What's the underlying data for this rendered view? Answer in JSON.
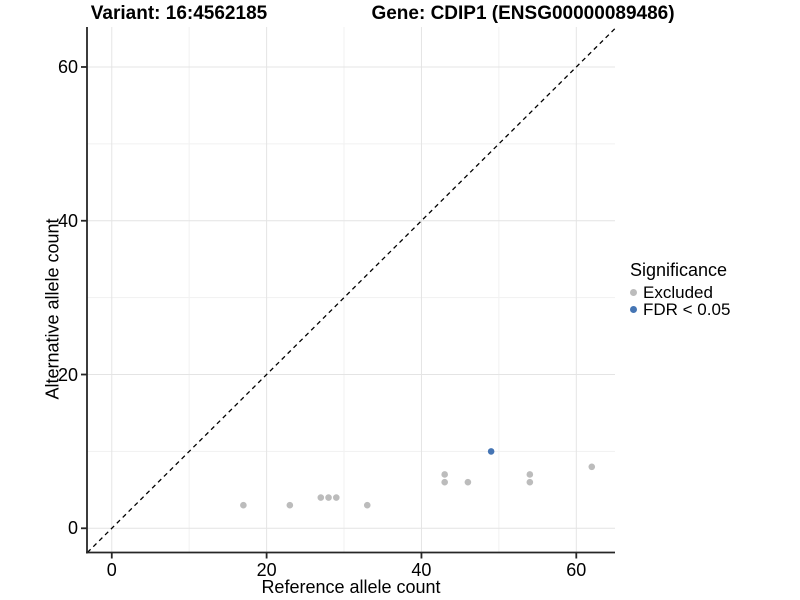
{
  "header": {
    "variant_title": "Variant: 16:4562185",
    "gene_title": "Gene: CDIP1 (ENSG00000089486)"
  },
  "axes": {
    "x_label": "Reference allele count",
    "y_label": "Alternative allele count"
  },
  "legend": {
    "title": "Significance",
    "items": [
      {
        "label": "Excluded",
        "color": "#bcbcbc"
      },
      {
        "label": "FDR < 0.05",
        "color": "#4575b4"
      }
    ]
  },
  "colors": {
    "excluded": "#bcbcbc",
    "significant": "#4575b4",
    "grid_major": "#e4e4e4",
    "grid_minor": "#f1f1f1",
    "axis_line": "#262626",
    "reference_line": "#000000"
  },
  "chart_data": {
    "type": "scatter",
    "title": "Variant: 16:4562185 — Gene: CDIP1 (ENSG00000089486)",
    "xlabel": "Reference allele count",
    "ylabel": "Alternative allele count",
    "xlim": [
      -3.2,
      65.0
    ],
    "ylim": [
      -3.15,
      65.2
    ],
    "x_ticks": [
      0,
      20,
      40,
      60
    ],
    "y_ticks": [
      0,
      20,
      40,
      60
    ],
    "x_minor_gridlines": [
      10,
      30,
      50
    ],
    "y_minor_gridlines": [
      10,
      30,
      50
    ],
    "grid": true,
    "legend_position": "right",
    "reference_line": "y = x (black dashed)",
    "series": [
      {
        "name": "Excluded",
        "color": "#bcbcbc",
        "points": [
          [
            17,
            3
          ],
          [
            23,
            3
          ],
          [
            27,
            4
          ],
          [
            28,
            4
          ],
          [
            29,
            4
          ],
          [
            33,
            3
          ],
          [
            43,
            6
          ],
          [
            43,
            7
          ],
          [
            46,
            6
          ],
          [
            54,
            6
          ],
          [
            54,
            7
          ],
          [
            62,
            8
          ]
        ]
      },
      {
        "name": "FDR < 0.05",
        "color": "#4575b4",
        "points": [
          [
            49,
            10
          ]
        ]
      }
    ]
  }
}
